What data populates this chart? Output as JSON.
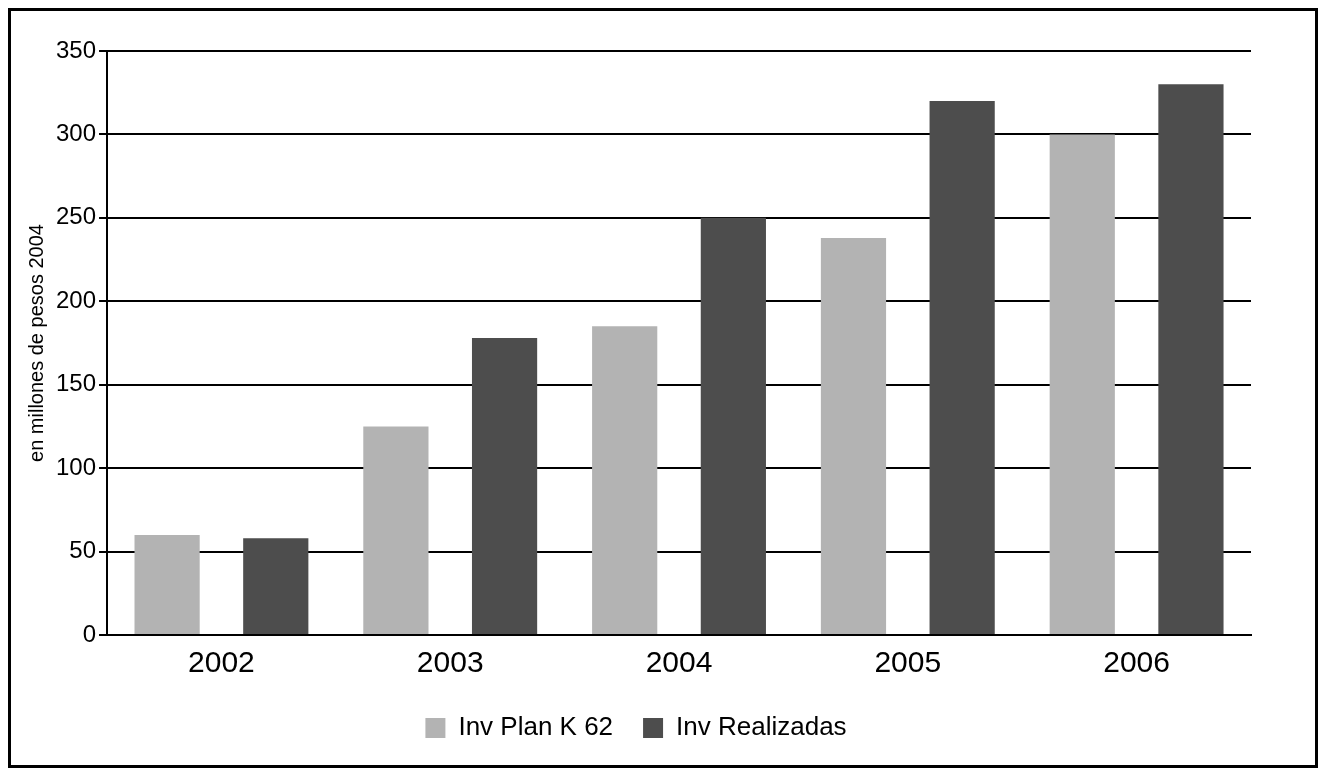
{
  "chart_data": {
    "type": "bar",
    "ylabel": "en millones de pesos 2004",
    "categories": [
      "2002",
      "2003",
      "2004",
      "2005",
      "2006"
    ],
    "series": [
      {
        "name": "Inv Plan K 62",
        "color": "#b3b3b3",
        "values": [
          60,
          125,
          185,
          238,
          300
        ]
      },
      {
        "name": "Inv Realizadas",
        "color": "#4d4d4d",
        "values": [
          58,
          178,
          250,
          320,
          330
        ]
      }
    ],
    "ylim": [
      0,
      350
    ],
    "yticks": [
      0,
      50,
      100,
      150,
      200,
      250,
      300,
      350
    ],
    "grid": "y",
    "legend": "bottom"
  }
}
